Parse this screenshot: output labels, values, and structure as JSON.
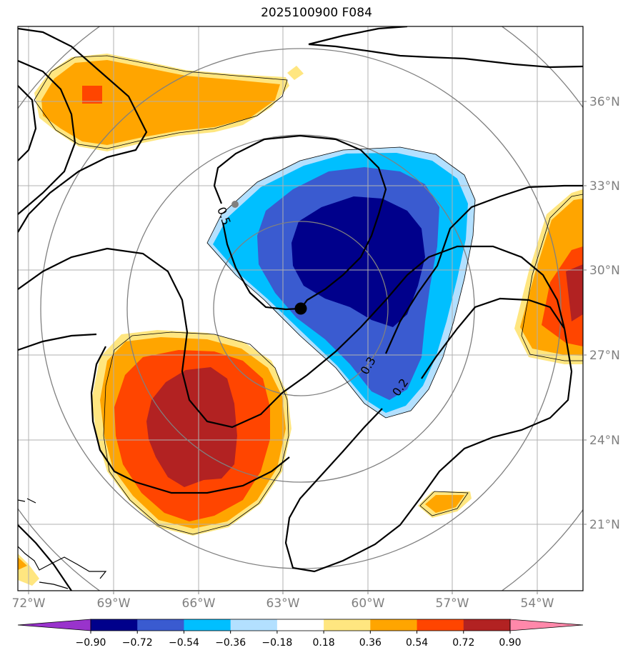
{
  "title": "2025100900 F084",
  "lat_labels": [
    "36°N",
    "33°N",
    "30°N",
    "27°N",
    "24°N",
    "21°N"
  ],
  "lon_labels": [
    "72°W",
    "69°W",
    "66°W",
    "63°W",
    "60°W",
    "57°W",
    "54°W"
  ],
  "contour_labels": [
    "0.5",
    "0.3",
    "0.2"
  ],
  "colorbar": {
    "ticks": [
      "−0.90",
      "−0.72",
      "−0.54",
      "−0.36",
      "−0.18",
      "0.18",
      "0.36",
      "0.54",
      "0.72",
      "0.90"
    ],
    "colors": [
      "#9933cc",
      "#00008b",
      "#3a5bd0",
      "#00bfff",
      "#b3e0ff",
      "#ffffff",
      "#ffe680",
      "#ffa500",
      "#ff4500",
      "#b22222",
      "#ff88aa"
    ]
  },
  "colors": {
    "dark_blue": "#00008b",
    "royal_blue": "#3a5bd0",
    "deep_sky": "#00bfff",
    "light_blue": "#b3e0ff",
    "yellow": "#ffe680",
    "orange": "#ffa500",
    "red_orange": "#ff4500",
    "firebrick": "#b22222",
    "grid": "#b0b0b0",
    "range_rings": "#808080"
  }
}
